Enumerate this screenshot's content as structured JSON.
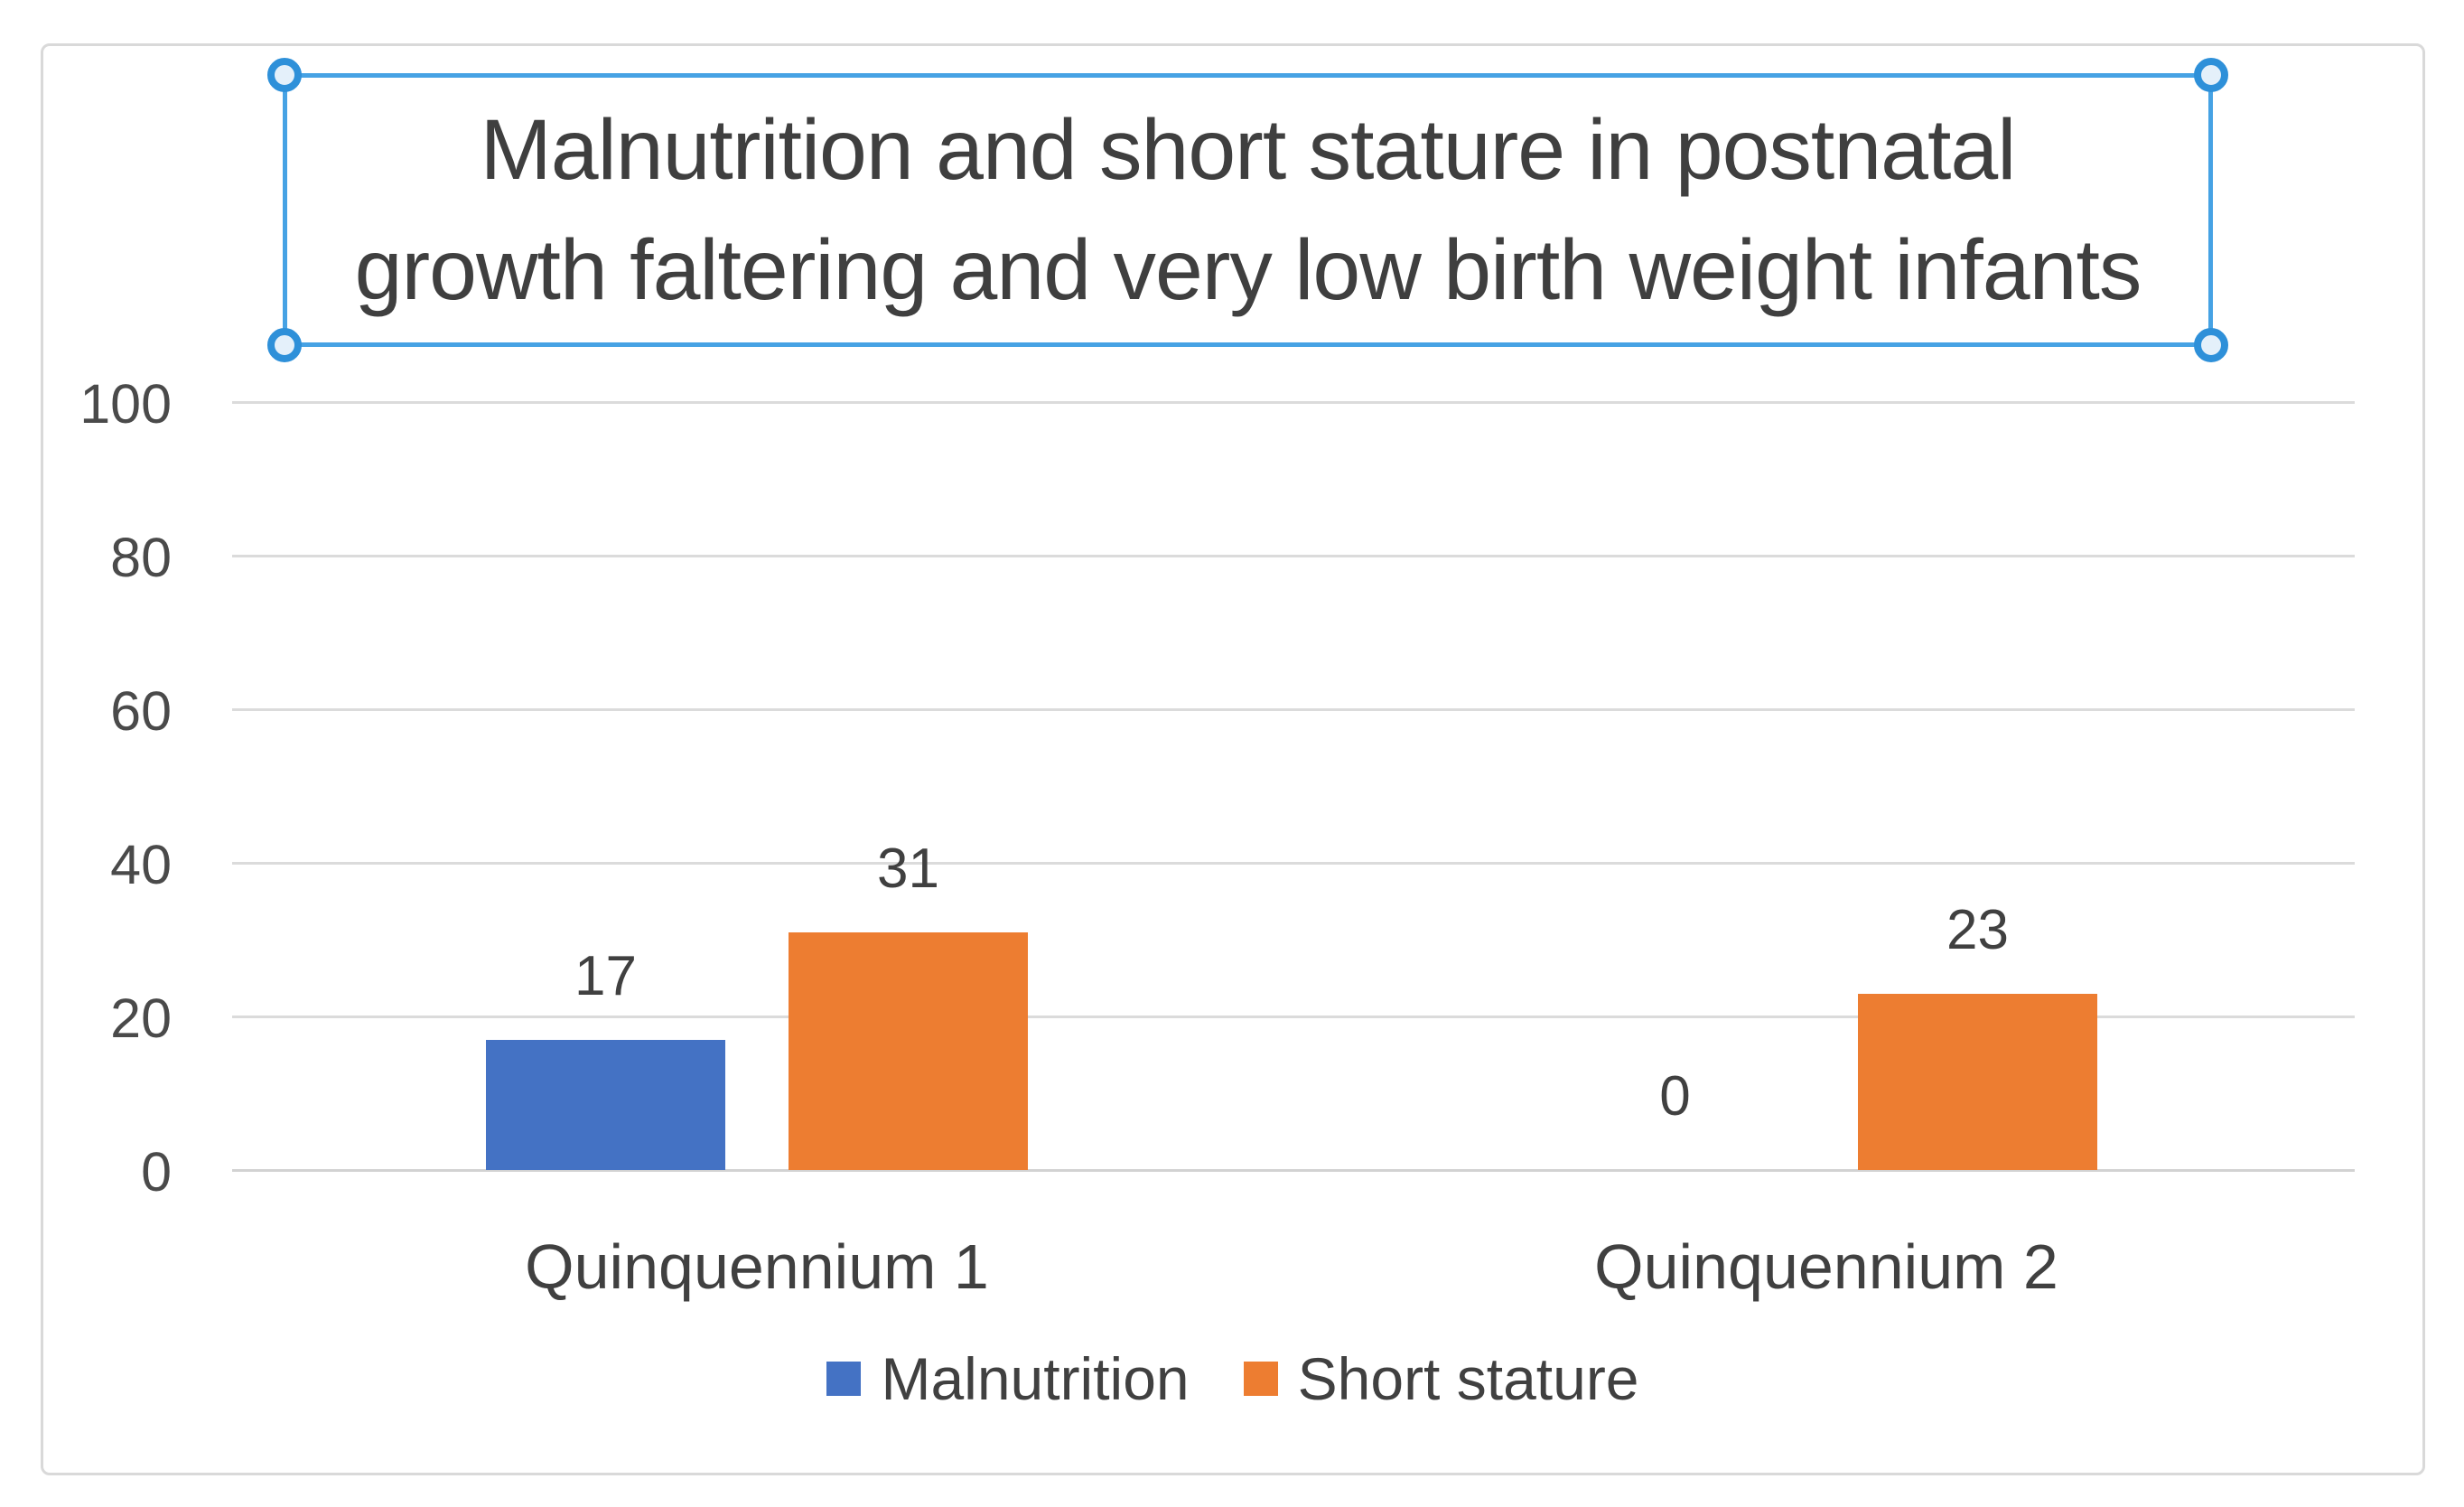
{
  "chart_data": {
    "type": "bar",
    "title": "Malnutrition and short stature in postnatal growth faltering and very low birth weight infants",
    "title_lines": [
      "Malnutrition and short stature in postnatal",
      "growth faltering and very low birth weight infants"
    ],
    "categories": [
      "Quinquennium 1",
      "Quinquennium 2"
    ],
    "series": [
      {
        "name": "Malnutrition",
        "color": "#4472C4",
        "values": [
          17,
          0
        ]
      },
      {
        "name": "Short stature",
        "color": "#ED7D31",
        "values": [
          31,
          23
        ]
      }
    ],
    "y_ticks": [
      0,
      20,
      40,
      60,
      80,
      100
    ],
    "ylim": [
      0,
      100
    ],
    "xlabel": "",
    "ylabel": "",
    "grid": true,
    "data_labels": true,
    "legend_position": "bottom"
  },
  "colors": {
    "series_blue": "#4472C4",
    "series_orange": "#ED7D31",
    "selection_border": "#46A2E4",
    "handle_ring": "#2E90D9",
    "gridline": "#DBDBDB",
    "frame_border": "#D9D9D9",
    "title_text": "#3F3F3F",
    "axis_text": "#4A4A4A",
    "label_text": "#404040",
    "background": "#FFFFFF"
  }
}
